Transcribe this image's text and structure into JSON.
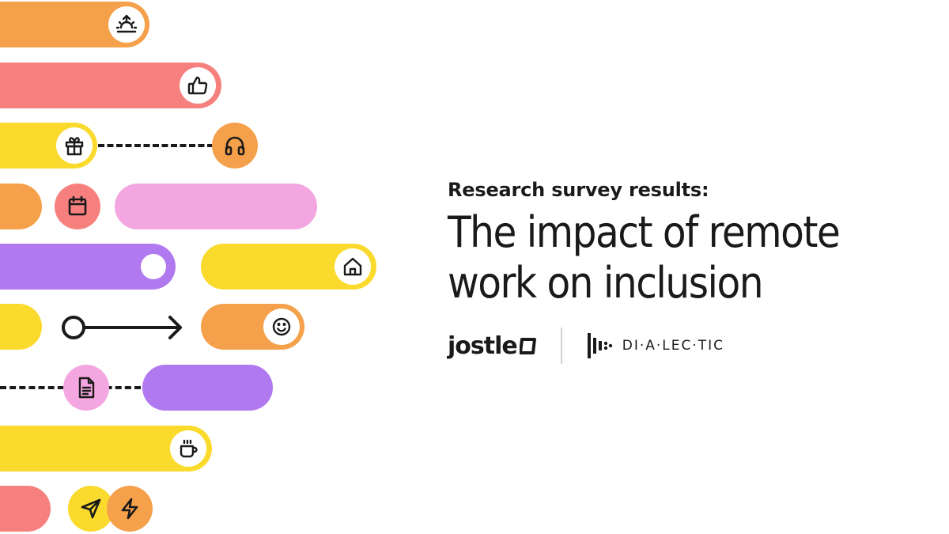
{
  "header": {
    "subtitle": "Research survey results:",
    "title_line1": "The impact of remote",
    "title_line2": "work on inclusion"
  },
  "logos": {
    "primary": "jostle",
    "secondary": "DI·A·LEC·TIC"
  },
  "colors": {
    "orange": "#F5A04A",
    "red": "#F6807E",
    "yellow": "#FBDA2E",
    "pink": "#F3A6E0",
    "purple": "#B179EF",
    "ink": "#1a1a1a"
  },
  "icons": [
    "sunrise-icon",
    "thumbs-up-icon",
    "gift-icon",
    "headphones-icon",
    "calendar-icon",
    "home-icon",
    "smiley-icon",
    "document-icon",
    "coffee-icon",
    "send-icon",
    "lightning-icon"
  ]
}
